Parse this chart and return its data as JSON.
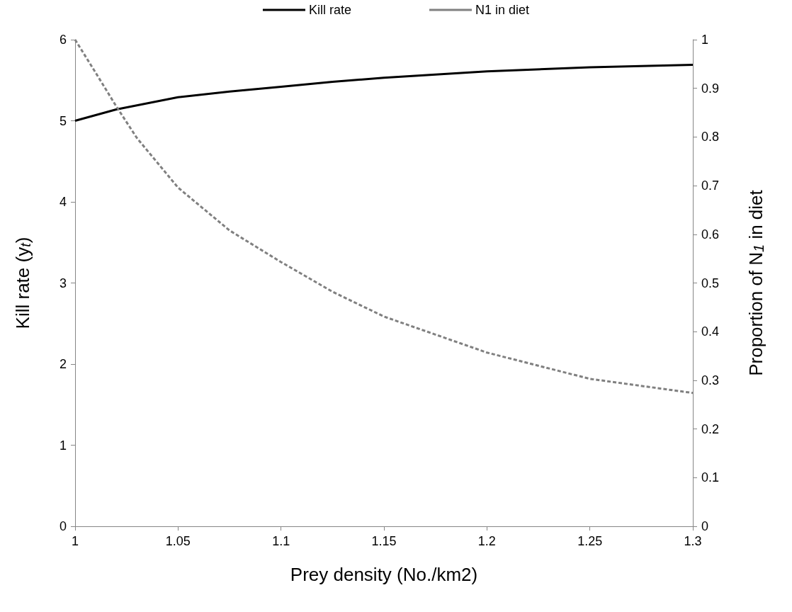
{
  "chart_data": {
    "type": "line",
    "xlabel": "Prey density (No./km2)",
    "ylabel": "Kill rate (y$_{t}$)",
    "y2label": "Proportion of N$_{1}$ in diet",
    "xlim": [
      1,
      1.3
    ],
    "xticks": [
      1,
      1.05,
      1.1,
      1.15,
      1.2,
      1.25,
      1.3
    ],
    "ylim": [
      0,
      6
    ],
    "yticks": [
      0,
      1,
      2,
      3,
      4,
      5,
      6
    ],
    "y2lim": [
      0,
      1
    ],
    "y2ticks": [
      0,
      0.1,
      0.2,
      0.3,
      0.4,
      0.5,
      0.6,
      0.7,
      0.8,
      0.9,
      1
    ],
    "grid": false,
    "legend": "top",
    "marker": "none",
    "series": [
      {
        "name": "Kill rate",
        "color": "#000000",
        "line_style": "solid",
        "x": [
          1,
          1.01,
          1.02,
          1.05,
          1.075,
          1.1,
          1.125,
          1.15,
          1.2,
          1.25,
          1.3
        ],
        "values": [
          5.0,
          5.07,
          5.14,
          5.29,
          5.36,
          5.42,
          5.48,
          5.53,
          5.61,
          5.66,
          5.69
        ]
      },
      {
        "name": "N1 in diet",
        "color": "#808080",
        "line_style": "dashed",
        "axis": "y2",
        "x": [
          1,
          1.01,
          1.02,
          1.03,
          1.05,
          1.075,
          1.1,
          1.125,
          1.15,
          1.2,
          1.25,
          1.3
        ],
        "values": [
          1.0,
          0.932,
          0.863,
          0.798,
          0.696,
          0.608,
          0.543,
          0.482,
          0.431,
          0.357,
          0.303,
          0.274
        ]
      }
    ]
  }
}
